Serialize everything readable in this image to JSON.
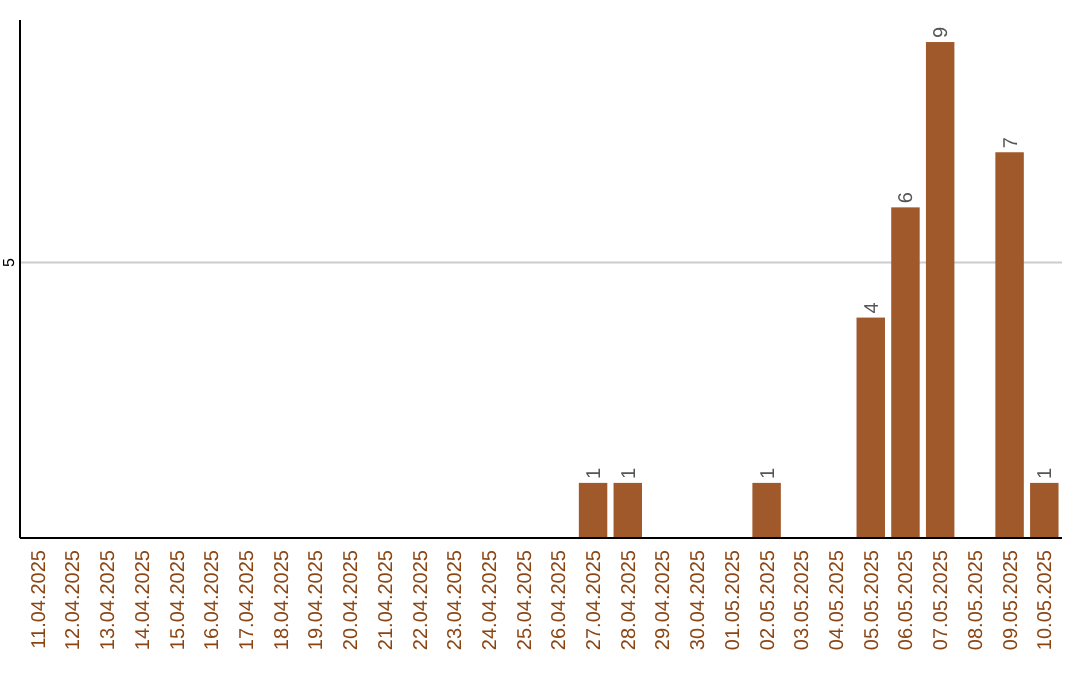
{
  "chart_data": {
    "type": "bar",
    "categories": [
      "11.04.2025",
      "12.04.2025",
      "13.04.2025",
      "14.04.2025",
      "15.04.2025",
      "16.04.2025",
      "17.04.2025",
      "18.04.2025",
      "19.04.2025",
      "20.04.2025",
      "21.04.2025",
      "22.04.2025",
      "23.04.2025",
      "24.04.2025",
      "25.04.2025",
      "26.04.2025",
      "27.04.2025",
      "28.04.2025",
      "29.04.2025",
      "30.04.2025",
      "01.05.2025",
      "02.05.2025",
      "03.05.2025",
      "04.05.2025",
      "05.05.2025",
      "06.05.2025",
      "07.05.2025",
      "08.05.2025",
      "09.05.2025",
      "10.05.2025"
    ],
    "values": [
      null,
      null,
      null,
      null,
      null,
      null,
      null,
      null,
      null,
      null,
      null,
      null,
      null,
      null,
      null,
      null,
      1,
      1,
      null,
      null,
      null,
      1,
      null,
      null,
      4,
      6,
      9,
      null,
      7,
      1
    ],
    "color": "#a0592a",
    "ylim": [
      0,
      9.4
    ],
    "yticks": [
      5
    ],
    "grid": "y",
    "data_labels": true
  }
}
